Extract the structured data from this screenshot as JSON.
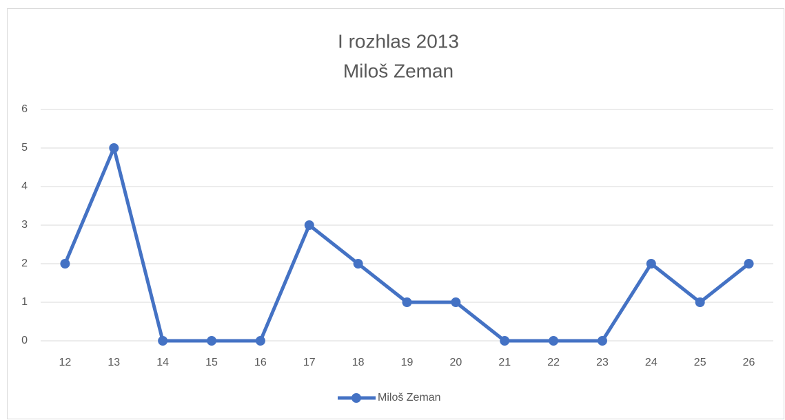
{
  "chart_data": {
    "type": "line",
    "title": "I rozhlas 2013",
    "subtitle": "Miloš Zeman",
    "categories": [
      "12",
      "13",
      "14",
      "15",
      "16",
      "17",
      "18",
      "19",
      "20",
      "21",
      "22",
      "23",
      "24",
      "25",
      "26"
    ],
    "series": [
      {
        "name": "Miloš Zeman",
        "color": "#4472c4",
        "values": [
          2,
          5,
          0,
          0,
          0,
          3,
          2,
          1,
          1,
          0,
          0,
          0,
          2,
          1,
          2
        ]
      }
    ],
    "ylim": [
      0,
      6
    ],
    "yticks": [
      0,
      1,
      2,
      3,
      4,
      5,
      6
    ],
    "grid": true,
    "legend": "bottom"
  }
}
